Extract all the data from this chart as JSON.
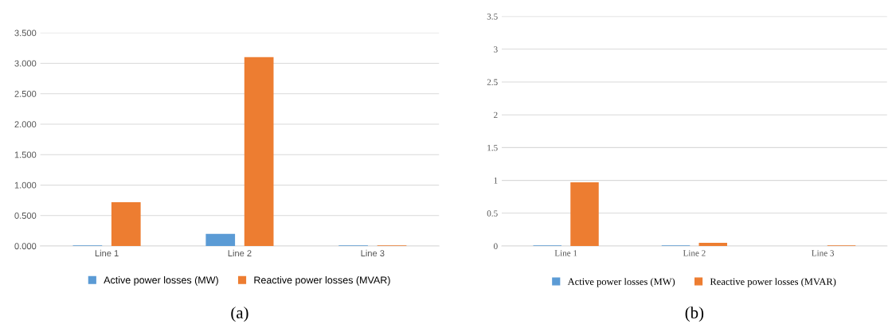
{
  "chart_data": [
    {
      "type": "bar",
      "categories": [
        "Line 1",
        "Line 2",
        "Line 3"
      ],
      "series": [
        {
          "name": "Active power losses (MW)",
          "color": "#5b9bd5",
          "values": [
            0.01,
            0.2,
            0.01
          ]
        },
        {
          "name": "Reactive power losses (MVAR)",
          "color": "#ed7d31",
          "values": [
            0.72,
            3.1,
            0.01
          ]
        }
      ],
      "ylim": [
        0,
        3.5
      ],
      "yticks": [
        {
          "value": 0,
          "label": "0.000"
        },
        {
          "value": 0.5,
          "label": "0.500"
        },
        {
          "value": 1,
          "label": "1.000"
        },
        {
          "value": 1.5,
          "label": "1.500"
        },
        {
          "value": 2,
          "label": "2.000"
        },
        {
          "value": 2.5,
          "label": "2.500"
        },
        {
          "value": 3,
          "label": "3.000"
        },
        {
          "value": 3.5,
          "label": "3.500"
        }
      ],
      "grid": "y",
      "legend": "bottom",
      "annotations": [
        "(a)"
      ]
    },
    {
      "type": "bar",
      "categories": [
        "Line 1",
        "Line 2",
        "Line 3"
      ],
      "series": [
        {
          "name": "Active power losses (MW)",
          "color": "#5b9bd5",
          "values": [
            0.01,
            0.01,
            0.0
          ]
        },
        {
          "name": "Reactive power losses (MVAR)",
          "color": "#ed7d31",
          "values": [
            0.97,
            0.05,
            0.01
          ]
        }
      ],
      "ylim": [
        0,
        3.5
      ],
      "yticks": [
        0,
        0.5,
        1,
        1.5,
        2,
        2.5,
        3,
        3.5
      ],
      "grid": "y",
      "legend": "bottom",
      "annotations": [
        "(b)"
      ]
    }
  ]
}
